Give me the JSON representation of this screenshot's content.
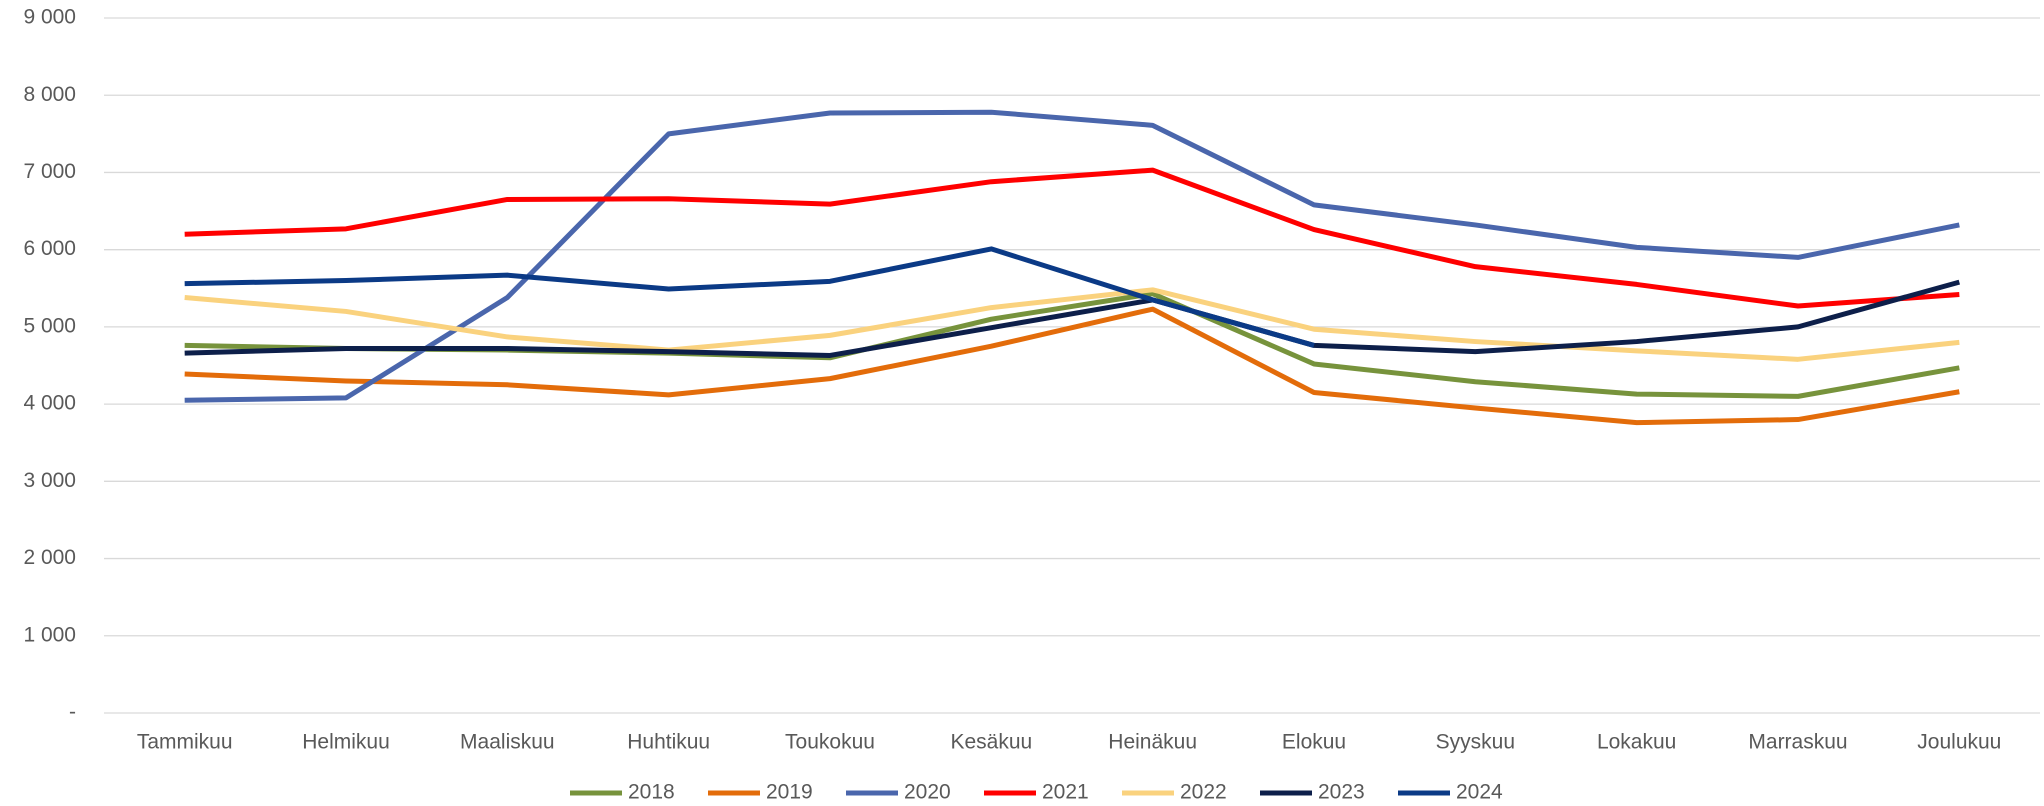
{
  "chart_data": {
    "type": "line",
    "categories": [
      "Tammikuu",
      "Helmikuu",
      "Maaliskuu",
      "Huhtikuu",
      "Toukokuu",
      "Kesäkuu",
      "Heinäkuu",
      "Elokuu",
      "Syyskuu",
      "Lokakuu",
      "Marraskuu",
      "Joulukuu"
    ],
    "series": [
      {
        "name": "2018",
        "color": "#77933c",
        "values": [
          4760,
          4720,
          4700,
          4660,
          4600,
          5100,
          5430,
          4520,
          4290,
          4130,
          4100,
          4470
        ]
      },
      {
        "name": "2019",
        "color": "#e36c0a",
        "values": [
          4390,
          4300,
          4250,
          4120,
          4330,
          4750,
          5230,
          4150,
          3950,
          3760,
          3800,
          4160
        ]
      },
      {
        "name": "2020",
        "color": "#4a66ac",
        "values": [
          4050,
          4080,
          5380,
          7500,
          7770,
          7780,
          7610,
          6580,
          6320,
          6030,
          5900,
          6320
        ]
      },
      {
        "name": "2021",
        "color": "#ff0000",
        "values": [
          6200,
          6270,
          6650,
          6660,
          6590,
          6880,
          7030,
          6260,
          5780,
          5550,
          5270,
          5420
        ]
      },
      {
        "name": "2022",
        "color": "#fad27e",
        "values": [
          5380,
          5200,
          4870,
          4700,
          4890,
          5250,
          5480,
          4970,
          4810,
          4690,
          4580,
          4800
        ]
      },
      {
        "name": "2023",
        "color": "#0d1f4a",
        "values": [
          4660,
          4720,
          4720,
          4680,
          4630,
          4990,
          5350,
          4760,
          4680,
          4810,
          5000,
          5580
        ]
      },
      {
        "name": "2024",
        "color": "#0b3a86",
        "values": [
          5560,
          5600,
          5670,
          5490,
          5590,
          6010,
          5350,
          4760,
          null,
          null,
          null,
          null
        ]
      }
    ],
    "ylim": [
      0,
      9000
    ],
    "yticks": [
      {
        "value": 0,
        "label": "-"
      },
      {
        "value": 1000,
        "label": "1 000"
      },
      {
        "value": 2000,
        "label": "2 000"
      },
      {
        "value": 3000,
        "label": "3 000"
      },
      {
        "value": 4000,
        "label": "4 000"
      },
      {
        "value": 5000,
        "label": "5 000"
      },
      {
        "value": 6000,
        "label": "6 000"
      },
      {
        "value": 7000,
        "label": "7 000"
      },
      {
        "value": 8000,
        "label": "8 000"
      },
      {
        "value": 9000,
        "label": "9 000"
      }
    ],
    "grid": true,
    "legend": "bottom"
  }
}
